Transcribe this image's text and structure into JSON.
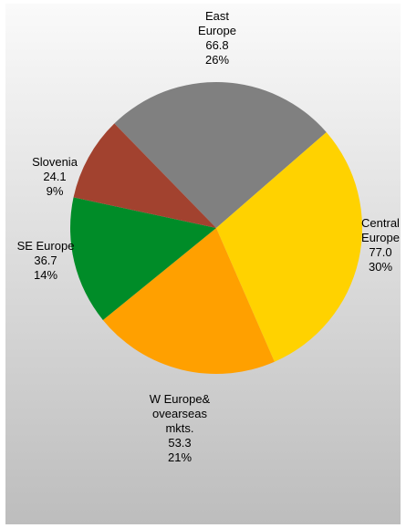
{
  "chart_data": {
    "type": "pie",
    "categories": [
      "East\nEurope",
      "Central\nEurope",
      "W Europe&\novearseas\nmkts.",
      "SE Europe",
      "Slovenia"
    ],
    "values": [
      66.8,
      77.0,
      53.3,
      36.7,
      24.1
    ],
    "value_labels": [
      "66.8",
      "77.0",
      "53.3",
      "36.7",
      "24.1"
    ],
    "percent_labels": [
      "26%",
      "30%",
      "21%",
      "14%",
      "9%"
    ],
    "colors": [
      "#808080",
      "#ffd200",
      "#ffa000",
      "#008c28",
      "#a2422f"
    ]
  }
}
